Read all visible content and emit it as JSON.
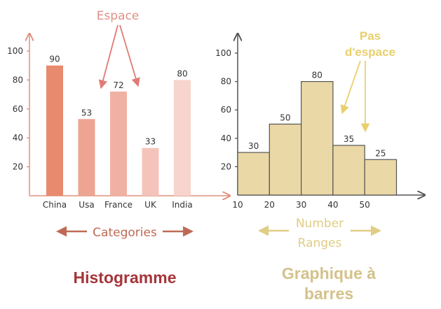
{
  "colors": {
    "left_axis": "#e0907e",
    "right_axis": "#555555",
    "left_bars": [
      "#e88a6e",
      "#eda493",
      "#f0b1a3",
      "#f4c4bb",
      "#f7d4cd"
    ],
    "right_bar_fill": "#ead8a6",
    "right_bar_stroke": "#555555",
    "espace_text": "#e08f85",
    "espace_arrow": "#e07a77",
    "pas_espace": "#e9cf6c",
    "categories_text": "#bf6a55",
    "number_ranges_text": "#e0cc84",
    "histogramme": "#a5353a",
    "graphique": "#d4c28b"
  },
  "chart_data": [
    {
      "type": "bar",
      "categories": [
        "China",
        "Usa",
        "France",
        "UK",
        "India"
      ],
      "values": [
        90,
        53,
        72,
        33,
        80
      ],
      "yticks": [
        20,
        40,
        60,
        80,
        100
      ],
      "ylim": [
        0,
        100
      ],
      "axis_caption": "Categories",
      "annotation": "Espace",
      "caption": "Histogramme"
    },
    {
      "type": "histogram",
      "xticks": [
        10,
        20,
        30,
        40,
        50
      ],
      "bins": [
        {
          "start": 10,
          "end": 20,
          "value": 30
        },
        {
          "start": 20,
          "end": 30,
          "value": 50
        },
        {
          "start": 30,
          "end": 40,
          "value": 80
        },
        {
          "start": 40,
          "end": 50,
          "value": 35
        },
        {
          "start": 50,
          "end": 60,
          "value": 25
        }
      ],
      "yticks": [
        20,
        40,
        60,
        80,
        100
      ],
      "ylim": [
        0,
        100
      ],
      "axis_caption_line1": "Number",
      "axis_caption_line2": "Ranges",
      "annotation_line1": "Pas",
      "annotation_line2": "d'espace",
      "caption_line1": "Graphique à",
      "caption_line2": "barres"
    }
  ]
}
